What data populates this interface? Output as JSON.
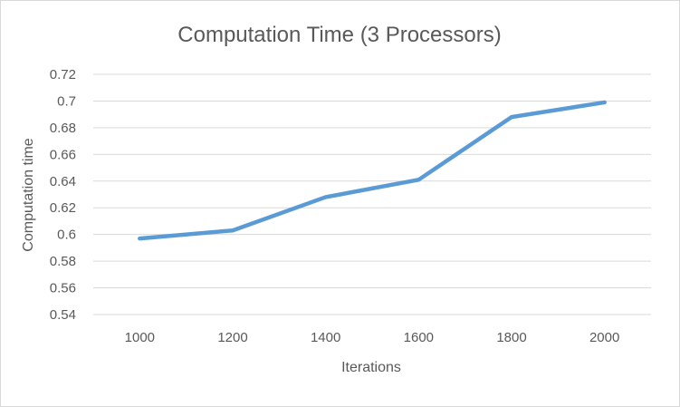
{
  "chart_data": {
    "type": "line",
    "title": "Computation Time (3 Processors)",
    "xlabel": "Iterations",
    "ylabel": "Computation time",
    "categories": [
      "1000",
      "1200",
      "1400",
      "1600",
      "1800",
      "2000"
    ],
    "series": [
      {
        "values": [
          0.597,
          0.603,
          0.628,
          0.641,
          0.688,
          0.699
        ]
      }
    ],
    "ylim": [
      0.54,
      0.72
    ],
    "yticks": [
      "0.54",
      "0.56",
      "0.58",
      "0.6",
      "0.62",
      "0.64",
      "0.66",
      "0.68",
      "0.7",
      "0.72"
    ],
    "grid": true,
    "legend": "none",
    "colors": {
      "line": "#5b9bd5",
      "grid": "#d9d9d9",
      "text": "#595959"
    }
  }
}
